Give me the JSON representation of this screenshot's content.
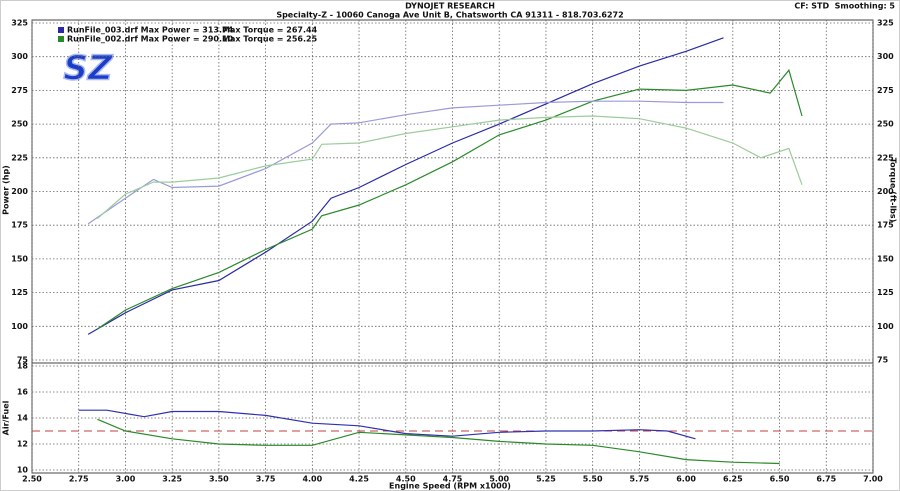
{
  "chart_data": [
    {
      "type": "line",
      "title": "DYNOJET RESEARCH",
      "subtitle": "Specialty-Z - 10060 Canoga Ave Unit B, Chatsworth CA 91311 - 818.703.6272",
      "note": "CF: STD  Smoothing: 5",
      "logo": "SZ",
      "ylabel": "Power (hp)",
      "y2label": "Torque (ft-lbs)",
      "ylim": [
        75,
        325
      ],
      "yticks": [
        75,
        100,
        125,
        150,
        175,
        200,
        225,
        250,
        275,
        300,
        325
      ],
      "y2lim": [
        75,
        325
      ],
      "y2ticks": [
        75,
        100,
        125,
        150,
        175,
        200,
        225,
        250,
        275,
        300,
        325
      ],
      "grid": true,
      "legend": [
        {
          "label": "RunFile_003.drf Max Power = 313.74",
          "detail": "Max Torque = 267.44",
          "color": "#2a2aa8"
        },
        {
          "label": "RunFile_002.drf Max Power = 290.10",
          "detail": "Max Torque = 256.25",
          "color": "#2a8a2a"
        }
      ],
      "series": [
        {
          "color": "#2a2aa8",
          "x": [
            2.8,
            3.0,
            3.25,
            3.5,
            3.75,
            4.0,
            4.1,
            4.25,
            4.5,
            4.75,
            5.0,
            5.25,
            5.5,
            5.75,
            6.0,
            6.2
          ],
          "values": [
            94,
            110,
            127,
            134,
            155,
            178,
            195,
            203,
            220,
            236,
            250,
            265,
            280,
            293,
            304,
            314
          ]
        },
        {
          "color": "#2a8a2a",
          "x": [
            2.85,
            3.0,
            3.25,
            3.5,
            3.75,
            4.0,
            4.05,
            4.25,
            4.5,
            4.75,
            5.0,
            5.25,
            5.5,
            5.75,
            6.0,
            6.25,
            6.45,
            6.55,
            6.62
          ],
          "values": [
            98,
            112,
            128,
            140,
            157,
            172,
            182,
            190,
            205,
            222,
            242,
            253,
            267,
            276,
            275,
            279,
            273,
            290,
            256
          ]
        },
        {
          "color": "#9a9ad8",
          "axis": "y2",
          "x": [
            2.8,
            3.0,
            3.15,
            3.25,
            3.5,
            3.75,
            4.0,
            4.1,
            4.25,
            4.5,
            4.75,
            5.0,
            5.25,
            5.5,
            5.75,
            6.0,
            6.2
          ],
          "values": [
            176,
            195,
            209,
            203,
            204,
            217,
            236,
            250,
            251,
            257,
            262,
            264,
            266,
            267,
            267,
            266,
            266
          ]
        },
        {
          "color": "#9ccc9c",
          "axis": "y2",
          "x": [
            2.85,
            3.0,
            3.15,
            3.25,
            3.5,
            3.75,
            4.0,
            4.05,
            4.25,
            4.5,
            4.75,
            5.0,
            5.25,
            5.5,
            5.75,
            6.0,
            6.25,
            6.4,
            6.55,
            6.62
          ],
          "values": [
            180,
            198,
            207,
            207,
            210,
            219,
            224,
            235,
            236,
            243,
            248,
            253,
            255,
            256,
            254,
            247,
            236,
            225,
            232,
            205
          ]
        }
      ]
    },
    {
      "type": "line",
      "ylabel": "Air/Fuel",
      "xlabel": "Engine Speed (RPM x1000)",
      "xlim": [
        2.5,
        7.0
      ],
      "xticks": [
        {
          "value": 2.5,
          "label": "2.50"
        },
        2.75,
        {
          "value": 3.0,
          "label": "3.00"
        },
        3.25,
        {
          "value": 3.5,
          "label": "3.50"
        },
        3.75,
        {
          "value": 4.0,
          "label": "4.00"
        },
        4.25,
        {
          "value": 4.5,
          "label": "4.50"
        },
        4.75,
        {
          "value": 5.0,
          "label": "5.00"
        },
        5.25,
        {
          "value": 5.5,
          "label": "5.50"
        },
        5.75,
        {
          "value": 6.0,
          "label": "6.00"
        },
        6.25,
        {
          "value": 6.5,
          "label": "6.50"
        },
        6.75,
        {
          "value": 7.0,
          "label": "7.00"
        }
      ],
      "ylim": [
        10,
        18
      ],
      "yticks": [
        10,
        12,
        14,
        16,
        18
      ],
      "grid": true,
      "reference": {
        "value": 13,
        "color": "#c04040"
      },
      "series": [
        {
          "color": "#3030b0",
          "x": [
            2.75,
            2.9,
            3.1,
            3.25,
            3.5,
            3.75,
            4.0,
            4.25,
            4.5,
            4.75,
            5.0,
            5.25,
            5.5,
            5.75,
            5.9,
            6.05
          ],
          "values": [
            14.6,
            14.6,
            14.1,
            14.5,
            14.5,
            14.2,
            13.6,
            13.4,
            12.8,
            12.6,
            12.9,
            13.0,
            13.0,
            13.1,
            13.0,
            12.4
          ]
        },
        {
          "color": "#2a8a2a",
          "x": [
            2.85,
            3.0,
            3.25,
            3.5,
            3.75,
            4.0,
            4.25,
            4.5,
            4.75,
            5.0,
            5.25,
            5.5,
            5.75,
            6.0,
            6.25,
            6.5
          ],
          "values": [
            13.9,
            13.0,
            12.4,
            12.0,
            11.9,
            11.9,
            12.9,
            12.7,
            12.5,
            12.2,
            12.0,
            11.9,
            11.4,
            10.8,
            10.6,
            10.5
          ]
        }
      ]
    }
  ]
}
